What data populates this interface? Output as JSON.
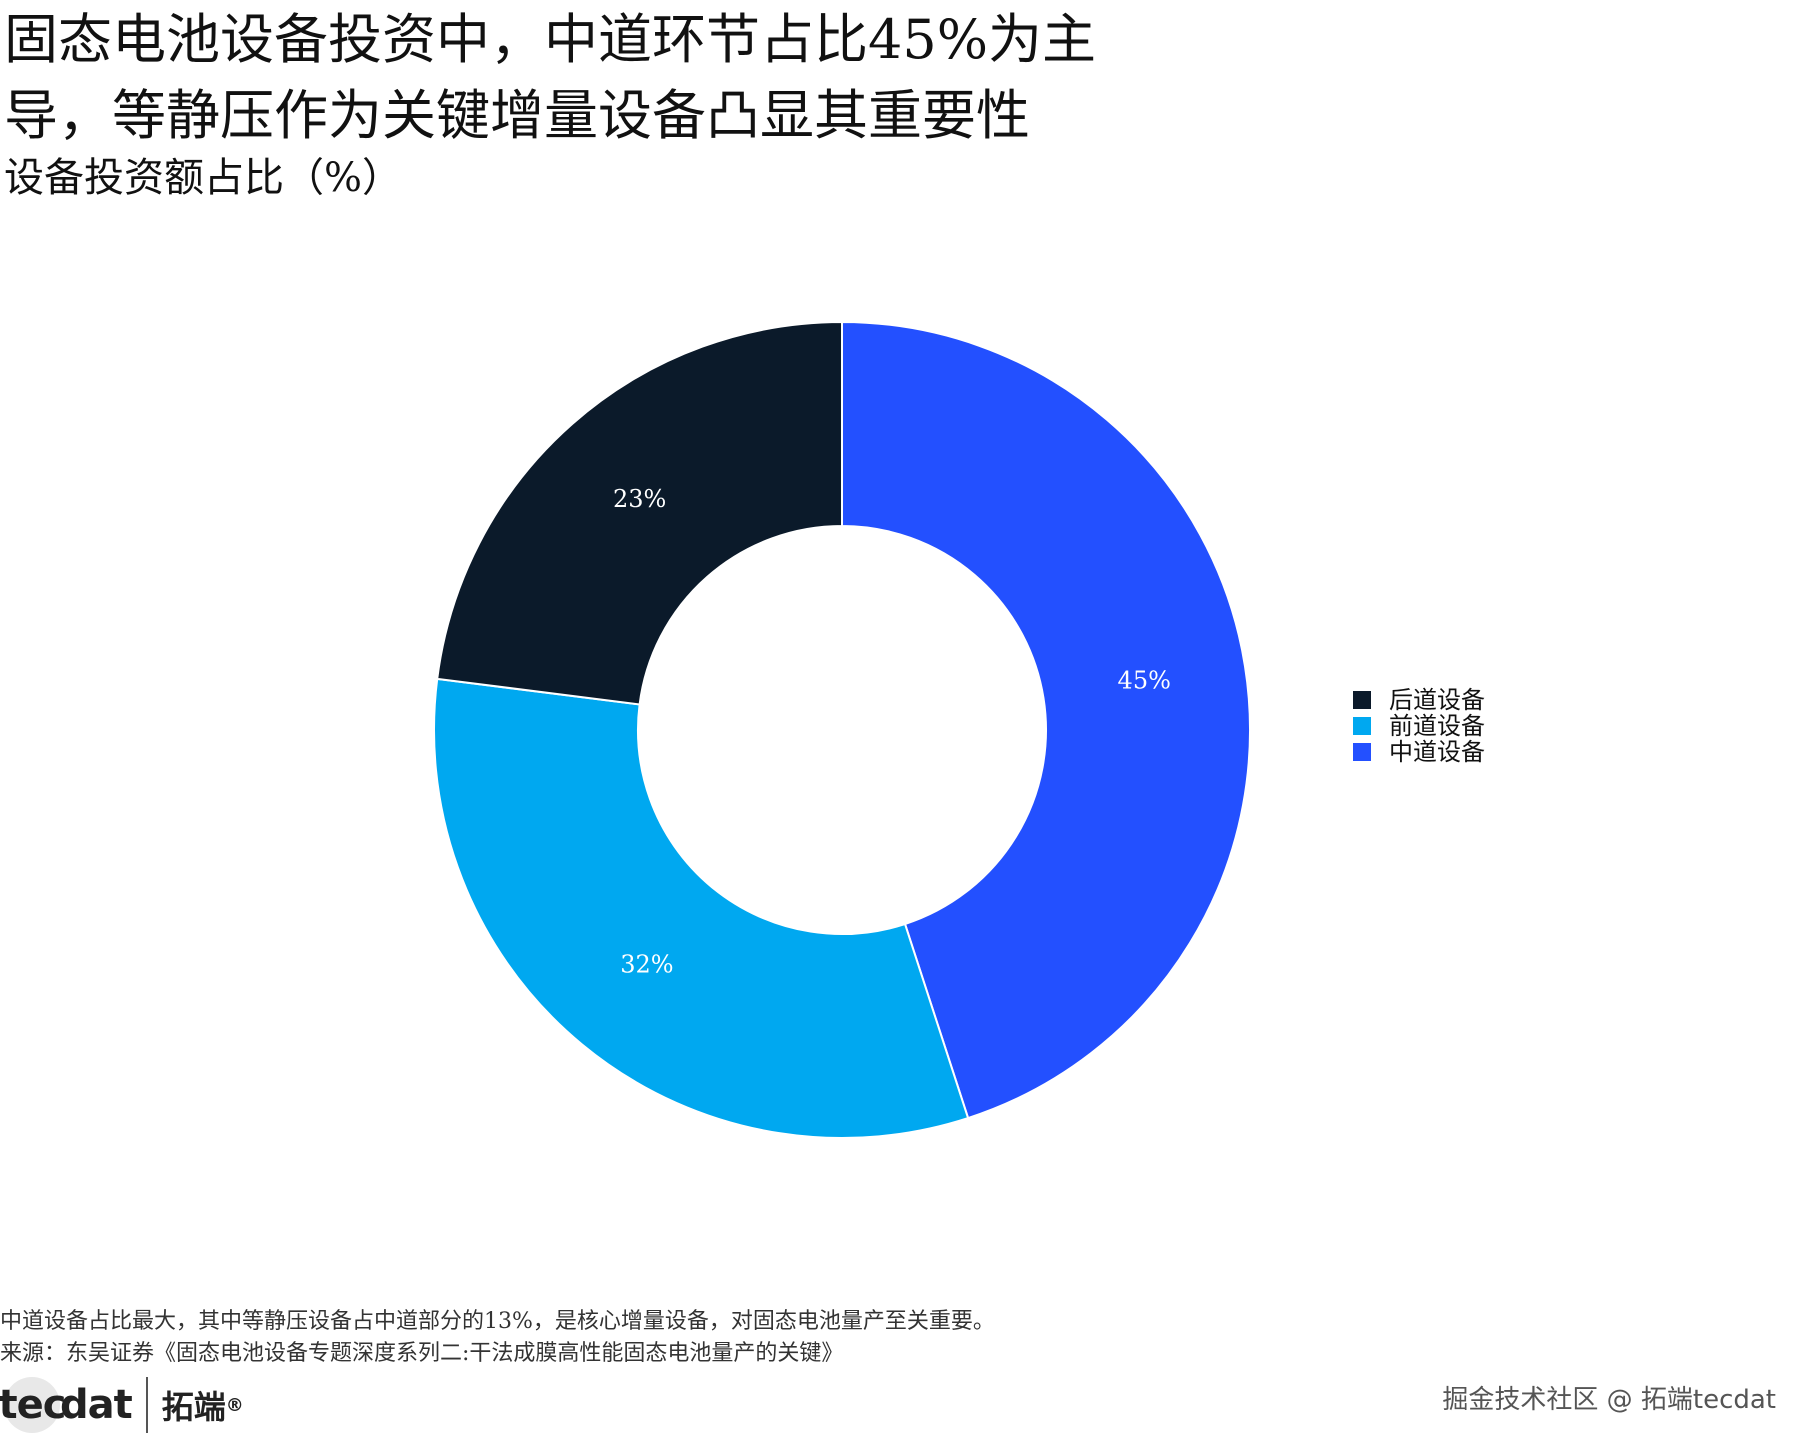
{
  "title": "固态电池设备投资中，中道环节占比45%为主导，等静压作为关键增量设备凸显其重要性",
  "subtitle": "设备投资额占比（%）",
  "chart_data": {
    "type": "pie",
    "donut": true,
    "slices": [
      {
        "label": "中道设备",
        "value": 45,
        "value_label": "45%",
        "color": "#2350ff"
      },
      {
        "label": "前道设备",
        "value": 32,
        "value_label": "32%",
        "color": "#00a8f0"
      },
      {
        "label": "后道设备",
        "value": 23,
        "value_label": "23%",
        "color": "#0b1a2a"
      }
    ],
    "legend": {
      "position": "right",
      "entries": [
        "后道设备",
        "前道设备",
        "中道设备"
      ],
      "colors": [
        "#0b1a2a",
        "#00a8f0",
        "#2350ff"
      ]
    }
  },
  "note": "中道设备占比最大，其中等静压设备占中道部分的13%，是核心增量设备，对固态电池量产至关重要。",
  "source": "来源：东吴证券《固态电池设备专题深度系列二:干法成膜高性能固态电池量产的关键》",
  "logo": {
    "latin_prefix": "tec",
    "latin_suffix": "dat",
    "chinese": "拓端",
    "mark": "®"
  },
  "watermark": "掘金技术社区 @ 拓端tecdat"
}
